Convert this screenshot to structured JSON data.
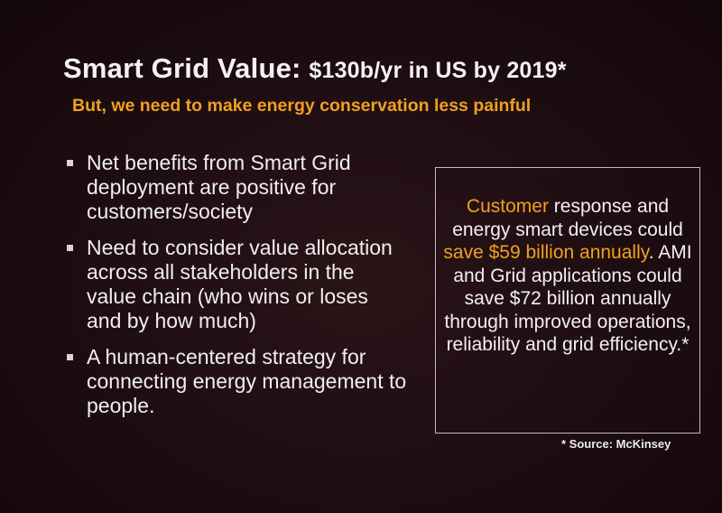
{
  "title": {
    "main": "Smart Grid Value: ",
    "sub": "$130b/yr in US by 2019*"
  },
  "subtitle": "But, we need to make energy conservation less painful",
  "bullets": [
    "Net benefits from Smart Grid deployment are positive for customers/society",
    "Need to consider value allocation across all stakeholders in the value chain (who wins or loses and by how much)",
    "A human-centered strategy for connecting energy management to people."
  ],
  "callout": {
    "part1_highlight": "Customer",
    "part2": " response and energy smart devices could ",
    "part3_highlight": "save $59 billion annually",
    "part4": ".   AMI and Grid applications could save $72 billion annually through improved operations, reliability and grid efficiency.*"
  },
  "source": "* Source: McKinsey",
  "colors": {
    "accent": "#f0a020",
    "background": "#1d0d11",
    "text": "#f2f0ef"
  }
}
